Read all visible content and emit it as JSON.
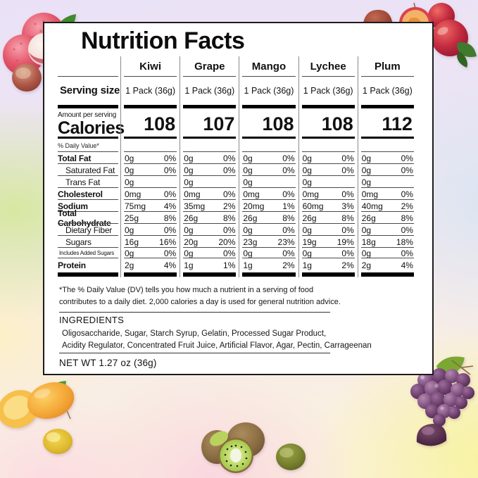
{
  "title": "Nutrition Facts",
  "table": {
    "products": [
      "Kiwi",
      "Grape",
      "Mango",
      "Lychee",
      "Plum"
    ],
    "serving_size_label": "Serving size",
    "serving_sizes": [
      "1 Pack (36g)",
      "1 Pack (36g)",
      "1 Pack (36g)",
      "1 Pack (36g)",
      "1 Pack (36g)"
    ],
    "amount_per_serving_label": "Amount per serving",
    "calories_label": "Calories",
    "calories": [
      "108",
      "107",
      "108",
      "108",
      "112"
    ],
    "daily_value_header": "% Daily Value*",
    "nutrient_rows": [
      {
        "label": "Total Fat",
        "style": "bold",
        "amounts": [
          "0g",
          "0g",
          "0g",
          "0g",
          "0g"
        ],
        "percents": [
          "0%",
          "0%",
          "0%",
          "0%",
          "0%"
        ]
      },
      {
        "label": "Saturated Fat",
        "style": "indent",
        "amounts": [
          "0g",
          "0g",
          "0g",
          "0g",
          "0g"
        ],
        "percents": [
          "0%",
          "0%",
          "0%",
          "0%",
          "0%"
        ]
      },
      {
        "label": "Trans Fat",
        "style": "indent",
        "amounts": [
          "0g",
          "0g",
          "0g",
          "0g",
          "0g"
        ],
        "percents": [
          "",
          "",
          "",
          "",
          ""
        ]
      },
      {
        "label": "Cholesterol",
        "style": "bold",
        "amounts": [
          "0mg",
          "0mg",
          "0mg",
          "0mg",
          "0mg"
        ],
        "percents": [
          "0%",
          "0%",
          "0%",
          "0%",
          "0%"
        ]
      },
      {
        "label": "Sodium",
        "style": "bold",
        "amounts": [
          "75mg",
          "35mg",
          "20mg",
          "60mg",
          "40mg"
        ],
        "percents": [
          "4%",
          "2%",
          "1%",
          "3%",
          "2%"
        ]
      },
      {
        "label": "Total Carbohydrate",
        "style": "bold",
        "amounts": [
          "25g",
          "26g",
          "26g",
          "26g",
          "26g"
        ],
        "percents": [
          "8%",
          "8%",
          "8%",
          "8%",
          "8%"
        ]
      },
      {
        "label": "Dietary Fiber",
        "style": "indent",
        "amounts": [
          "0g",
          "0g",
          "0g",
          "0g",
          "0g"
        ],
        "percents": [
          "0%",
          "0%",
          "0%",
          "0%",
          "0%"
        ]
      },
      {
        "label": "Sugars",
        "style": "indent",
        "amounts": [
          "16g",
          "20g",
          "23g",
          "19g",
          "18g"
        ],
        "percents": [
          "16%",
          "20%",
          "23%",
          "19%",
          "18%"
        ]
      },
      {
        "label": "Includes Added Sugars",
        "style": "small",
        "amounts": [
          "0g",
          "0g",
          "0g",
          "0g",
          "0g"
        ],
        "percents": [
          "0%",
          "0%",
          "0%",
          "0%",
          "0%"
        ]
      },
      {
        "label": "Protein",
        "style": "bold",
        "amounts": [
          "2g",
          "1g",
          "1g",
          "1g",
          "2g"
        ],
        "percents": [
          "4%",
          "1%",
          "2%",
          "2%",
          "4%"
        ]
      }
    ]
  },
  "footnote": {
    "line1": "*The % Daily Value (DV) tells you how much a nutrient in a serving of food",
    "line2": "contributes to a daily diet. 2,000 calories a day is used for general nutrition advice."
  },
  "ingredients": {
    "heading": "INGREDIENTS",
    "line1": "Oligosaccharide, Sugar, Starch Syrup, Gelatin, Processed Sugar Product,",
    "line2": "Acidity Regulator, Concentrated Fruit Juice, Artificial Flavor, Agar, Pectin, Carrageenan"
  },
  "net_weight": "NET WT 1.27 oz (36g)",
  "decorations": {
    "top_left": "lychee fruits with leaf and red gummy",
    "top_right": "plums with halved plum, leaf and red gummy",
    "bottom_left": "mango with cut half, leaf and yellow gummy",
    "bottom_center": "kiwis with cut half and green gummy",
    "bottom_right": "grape bunch with leaf and purple gummy",
    "palette": {
      "lychee_red": "#e4556a",
      "plum_red": "#bf2540",
      "mango_orange": "#f5a938",
      "kiwi_green": "#a8cf4a",
      "grape_purple": "#855685",
      "leaf_green": "#4e9a34"
    }
  }
}
